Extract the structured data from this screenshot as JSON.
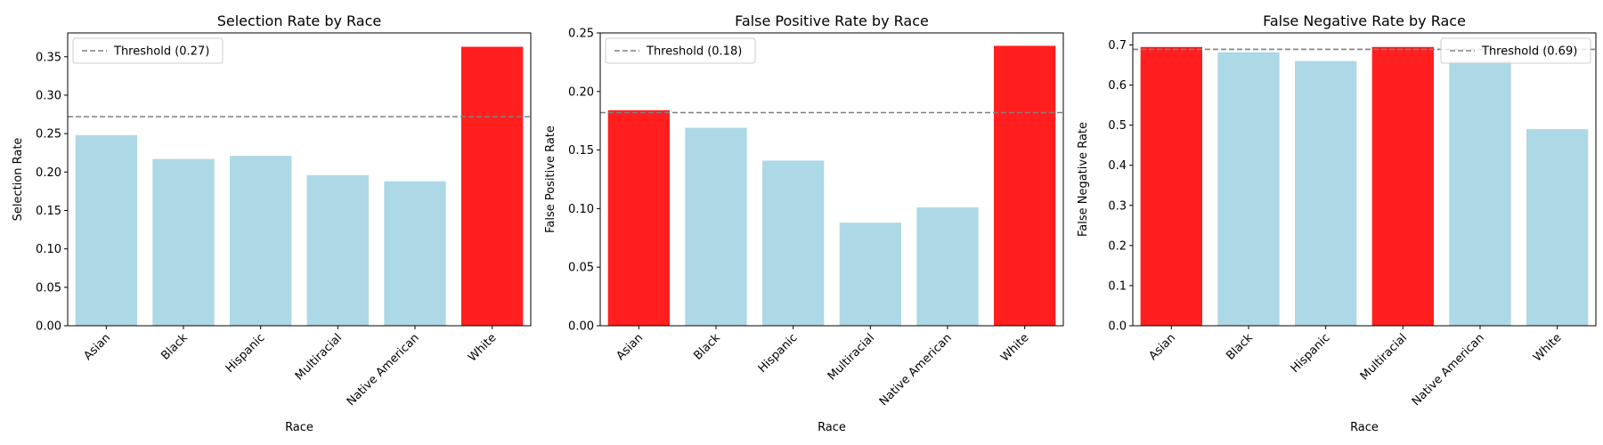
{
  "colors": {
    "normal": "#add8e6",
    "highlight": "#ff0000",
    "threshold": "#808080",
    "axis": "#000000"
  },
  "chart_data": [
    {
      "type": "bar",
      "title": "Selection Rate by Race",
      "xlabel": "Race",
      "ylabel": "Selection Rate",
      "categories": [
        "Asian",
        "Black",
        "Hispanic",
        "Multiracial",
        "Native American",
        "White"
      ],
      "values": [
        0.248,
        0.217,
        0.221,
        0.196,
        0.188,
        0.363
      ],
      "highlighted": [
        false,
        false,
        false,
        false,
        false,
        true
      ],
      "threshold": 0.272,
      "legend": {
        "label": "Threshold (0.27)",
        "placement": "top-left"
      },
      "ylim": [
        0,
        0.381
      ],
      "yticks": [
        0.0,
        0.05,
        0.1,
        0.15,
        0.2,
        0.25,
        0.3,
        0.35
      ],
      "ytick_labels": [
        "0.00",
        "0.05",
        "0.10",
        "0.15",
        "0.20",
        "0.25",
        "0.30",
        "0.35"
      ],
      "grid": false
    },
    {
      "type": "bar",
      "title": "False Positive Rate by Race",
      "xlabel": "Race",
      "ylabel": "False Positive Rate",
      "categories": [
        "Asian",
        "Black",
        "Hispanic",
        "Multiracial",
        "Native American",
        "White"
      ],
      "values": [
        0.184,
        0.169,
        0.141,
        0.088,
        0.101,
        0.239
      ],
      "highlighted": [
        true,
        false,
        false,
        false,
        false,
        true
      ],
      "threshold": 0.182,
      "legend": {
        "label": "Threshold (0.18)",
        "placement": "top-left"
      },
      "ylim": [
        0,
        0.25
      ],
      "yticks": [
        0.0,
        0.05,
        0.1,
        0.15,
        0.2,
        0.25
      ],
      "ytick_labels": [
        "0.00",
        "0.05",
        "0.10",
        "0.15",
        "0.20",
        "0.25"
      ],
      "grid": false
    },
    {
      "type": "bar",
      "title": "False Negative Rate by Race",
      "xlabel": "Race",
      "ylabel": "False Negative Rate",
      "categories": [
        "Asian",
        "Black",
        "Hispanic",
        "Multiracial",
        "Native American",
        "White"
      ],
      "values": [
        0.695,
        0.682,
        0.66,
        0.695,
        0.66,
        0.49
      ],
      "highlighted": [
        true,
        false,
        false,
        true,
        false,
        false
      ],
      "threshold": 0.689,
      "legend": {
        "label": "Threshold (0.69)",
        "placement": "top-right"
      },
      "ylim": [
        0,
        0.73
      ],
      "yticks": [
        0.0,
        0.1,
        0.2,
        0.3,
        0.4,
        0.5,
        0.6,
        0.7
      ],
      "ytick_labels": [
        "0.0",
        "0.1",
        "0.2",
        "0.3",
        "0.4",
        "0.5",
        "0.6",
        "0.7"
      ],
      "grid": false
    }
  ]
}
